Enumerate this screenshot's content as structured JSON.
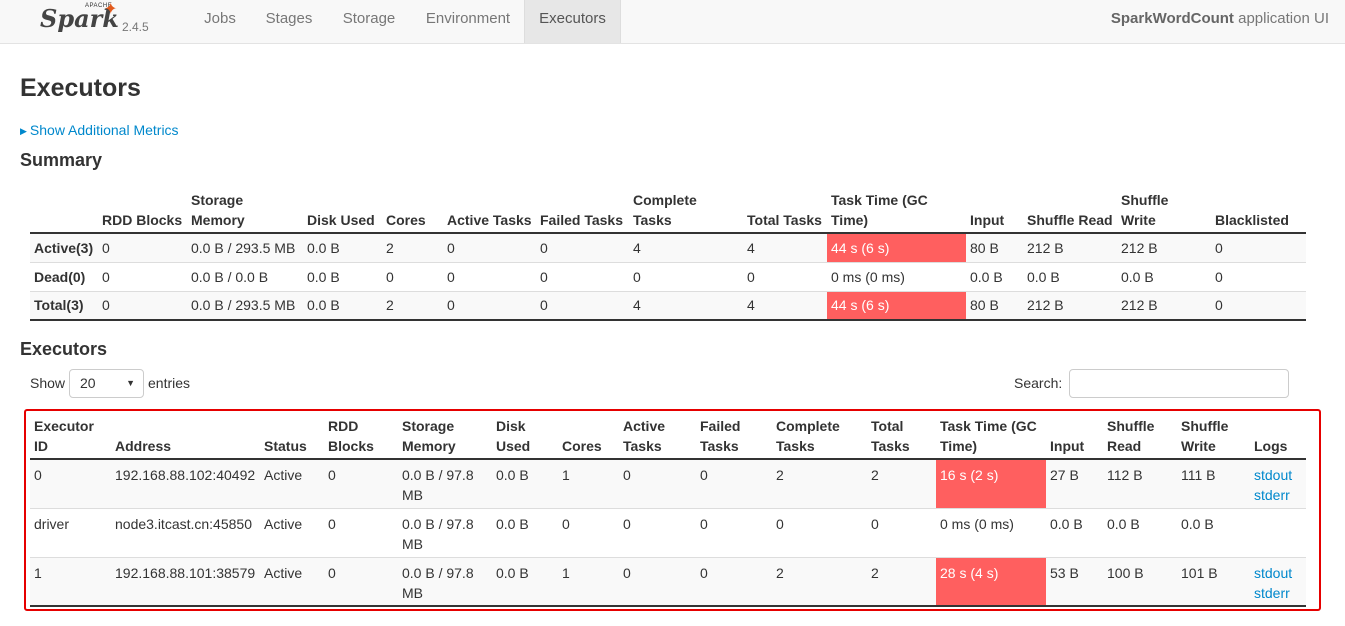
{
  "brand": {
    "apache": "APACHE",
    "name": "Spark",
    "version": "2.4.5"
  },
  "nav": {
    "jobs": "Jobs",
    "stages": "Stages",
    "storage": "Storage",
    "environment": "Environment",
    "executors": "Executors"
  },
  "app": {
    "name": "SparkWordCount",
    "suffix": " application UI"
  },
  "page_title": "Executors",
  "metrics_link": "Show Additional Metrics",
  "summary": {
    "heading": "Summary",
    "headers": {
      "rdd_blocks": "RDD Blocks",
      "storage_memory": "Storage Memory",
      "disk_used": "Disk Used",
      "cores": "Cores",
      "active_tasks": "Active Tasks",
      "failed_tasks": "Failed Tasks",
      "complete_tasks": "Complete Tasks",
      "total_tasks": "Total Tasks",
      "task_time": "Task Time (GC Time)",
      "input": "Input",
      "shuffle_read": "Shuffle Read",
      "shuffle_write": "Shuffle Write",
      "blacklisted": "Blacklisted"
    },
    "rows": [
      {
        "label": "Active(3)",
        "rdd_blocks": "0",
        "storage_memory": "0.0 B / 293.5 MB",
        "disk_used": "0.0 B",
        "cores": "2",
        "active_tasks": "0",
        "failed_tasks": "0",
        "complete_tasks": "4",
        "total_tasks": "4",
        "task_time": "44 s (6 s)",
        "input": "80 B",
        "shuffle_read": "212 B",
        "shuffle_write": "212 B",
        "blacklisted": "0"
      },
      {
        "label": "Dead(0)",
        "rdd_blocks": "0",
        "storage_memory": "0.0 B / 0.0 B",
        "disk_used": "0.0 B",
        "cores": "0",
        "active_tasks": "0",
        "failed_tasks": "0",
        "complete_tasks": "0",
        "total_tasks": "0",
        "task_time": "0 ms (0 ms)",
        "input": "0.0 B",
        "shuffle_read": "0.0 B",
        "shuffle_write": "0.0 B",
        "blacklisted": "0"
      },
      {
        "label": "Total(3)",
        "rdd_blocks": "0",
        "storage_memory": "0.0 B / 293.5 MB",
        "disk_used": "0.0 B",
        "cores": "2",
        "active_tasks": "0",
        "failed_tasks": "0",
        "complete_tasks": "4",
        "total_tasks": "4",
        "task_time": "44 s (6 s)",
        "input": "80 B",
        "shuffle_read": "212 B",
        "shuffle_write": "212 B",
        "blacklisted": "0"
      }
    ]
  },
  "executors": {
    "heading": "Executors",
    "show_label": "Show",
    "page_size": "20",
    "entries_label": "entries",
    "search_label": "Search:",
    "search_value": "",
    "headers": {
      "id": "Executor ID",
      "address": "Address",
      "status": "Status",
      "rdd_blocks": "RDD Blocks",
      "storage_memory": "Storage Memory",
      "disk_used": "Disk Used",
      "cores": "Cores",
      "active_tasks": "Active Tasks",
      "failed_tasks": "Failed Tasks",
      "complete_tasks": "Complete Tasks",
      "total_tasks": "Total Tasks",
      "task_time": "Task Time (GC Time)",
      "input": "Input",
      "shuffle_read": "Shuffle Read",
      "shuffle_write": "Shuffle Write",
      "logs": "Logs"
    },
    "rows": [
      {
        "id": "0",
        "address": "192.168.88.102:40492",
        "status": "Active",
        "rdd_blocks": "0",
        "storage_memory": "0.0 B / 97.8 MB",
        "disk_used": "0.0 B",
        "cores": "1",
        "active_tasks": "0",
        "failed_tasks": "0",
        "complete_tasks": "2",
        "total_tasks": "2",
        "task_time": "16 s (2 s)",
        "input": "27 B",
        "shuffle_read": "112 B",
        "shuffle_write": "111 B",
        "stdout": "stdout",
        "stderr": "stderr"
      },
      {
        "id": "driver",
        "address": "node3.itcast.cn:45850",
        "status": "Active",
        "rdd_blocks": "0",
        "storage_memory": "0.0 B / 97.8 MB",
        "disk_used": "0.0 B",
        "cores": "0",
        "active_tasks": "0",
        "failed_tasks": "0",
        "complete_tasks": "0",
        "total_tasks": "0",
        "task_time": "0 ms (0 ms)",
        "input": "0.0 B",
        "shuffle_read": "0.0 B",
        "shuffle_write": "0.0 B",
        "stdout": "",
        "stderr": ""
      },
      {
        "id": "1",
        "address": "192.168.88.101:38579",
        "status": "Active",
        "rdd_blocks": "0",
        "storage_memory": "0.0 B / 97.8 MB",
        "disk_used": "0.0 B",
        "cores": "1",
        "active_tasks": "0",
        "failed_tasks": "0",
        "complete_tasks": "2",
        "total_tasks": "2",
        "task_time": "28 s (4 s)",
        "input": "53 B",
        "shuffle_read": "100 B",
        "shuffle_write": "101 B",
        "stdout": "stdout",
        "stderr": "stderr"
      }
    ]
  },
  "colors": {
    "hot_cell": "#ff5f5f",
    "link": "#0088cc",
    "highlight_box": "#e60000",
    "spark_star": "#e25a1c"
  }
}
